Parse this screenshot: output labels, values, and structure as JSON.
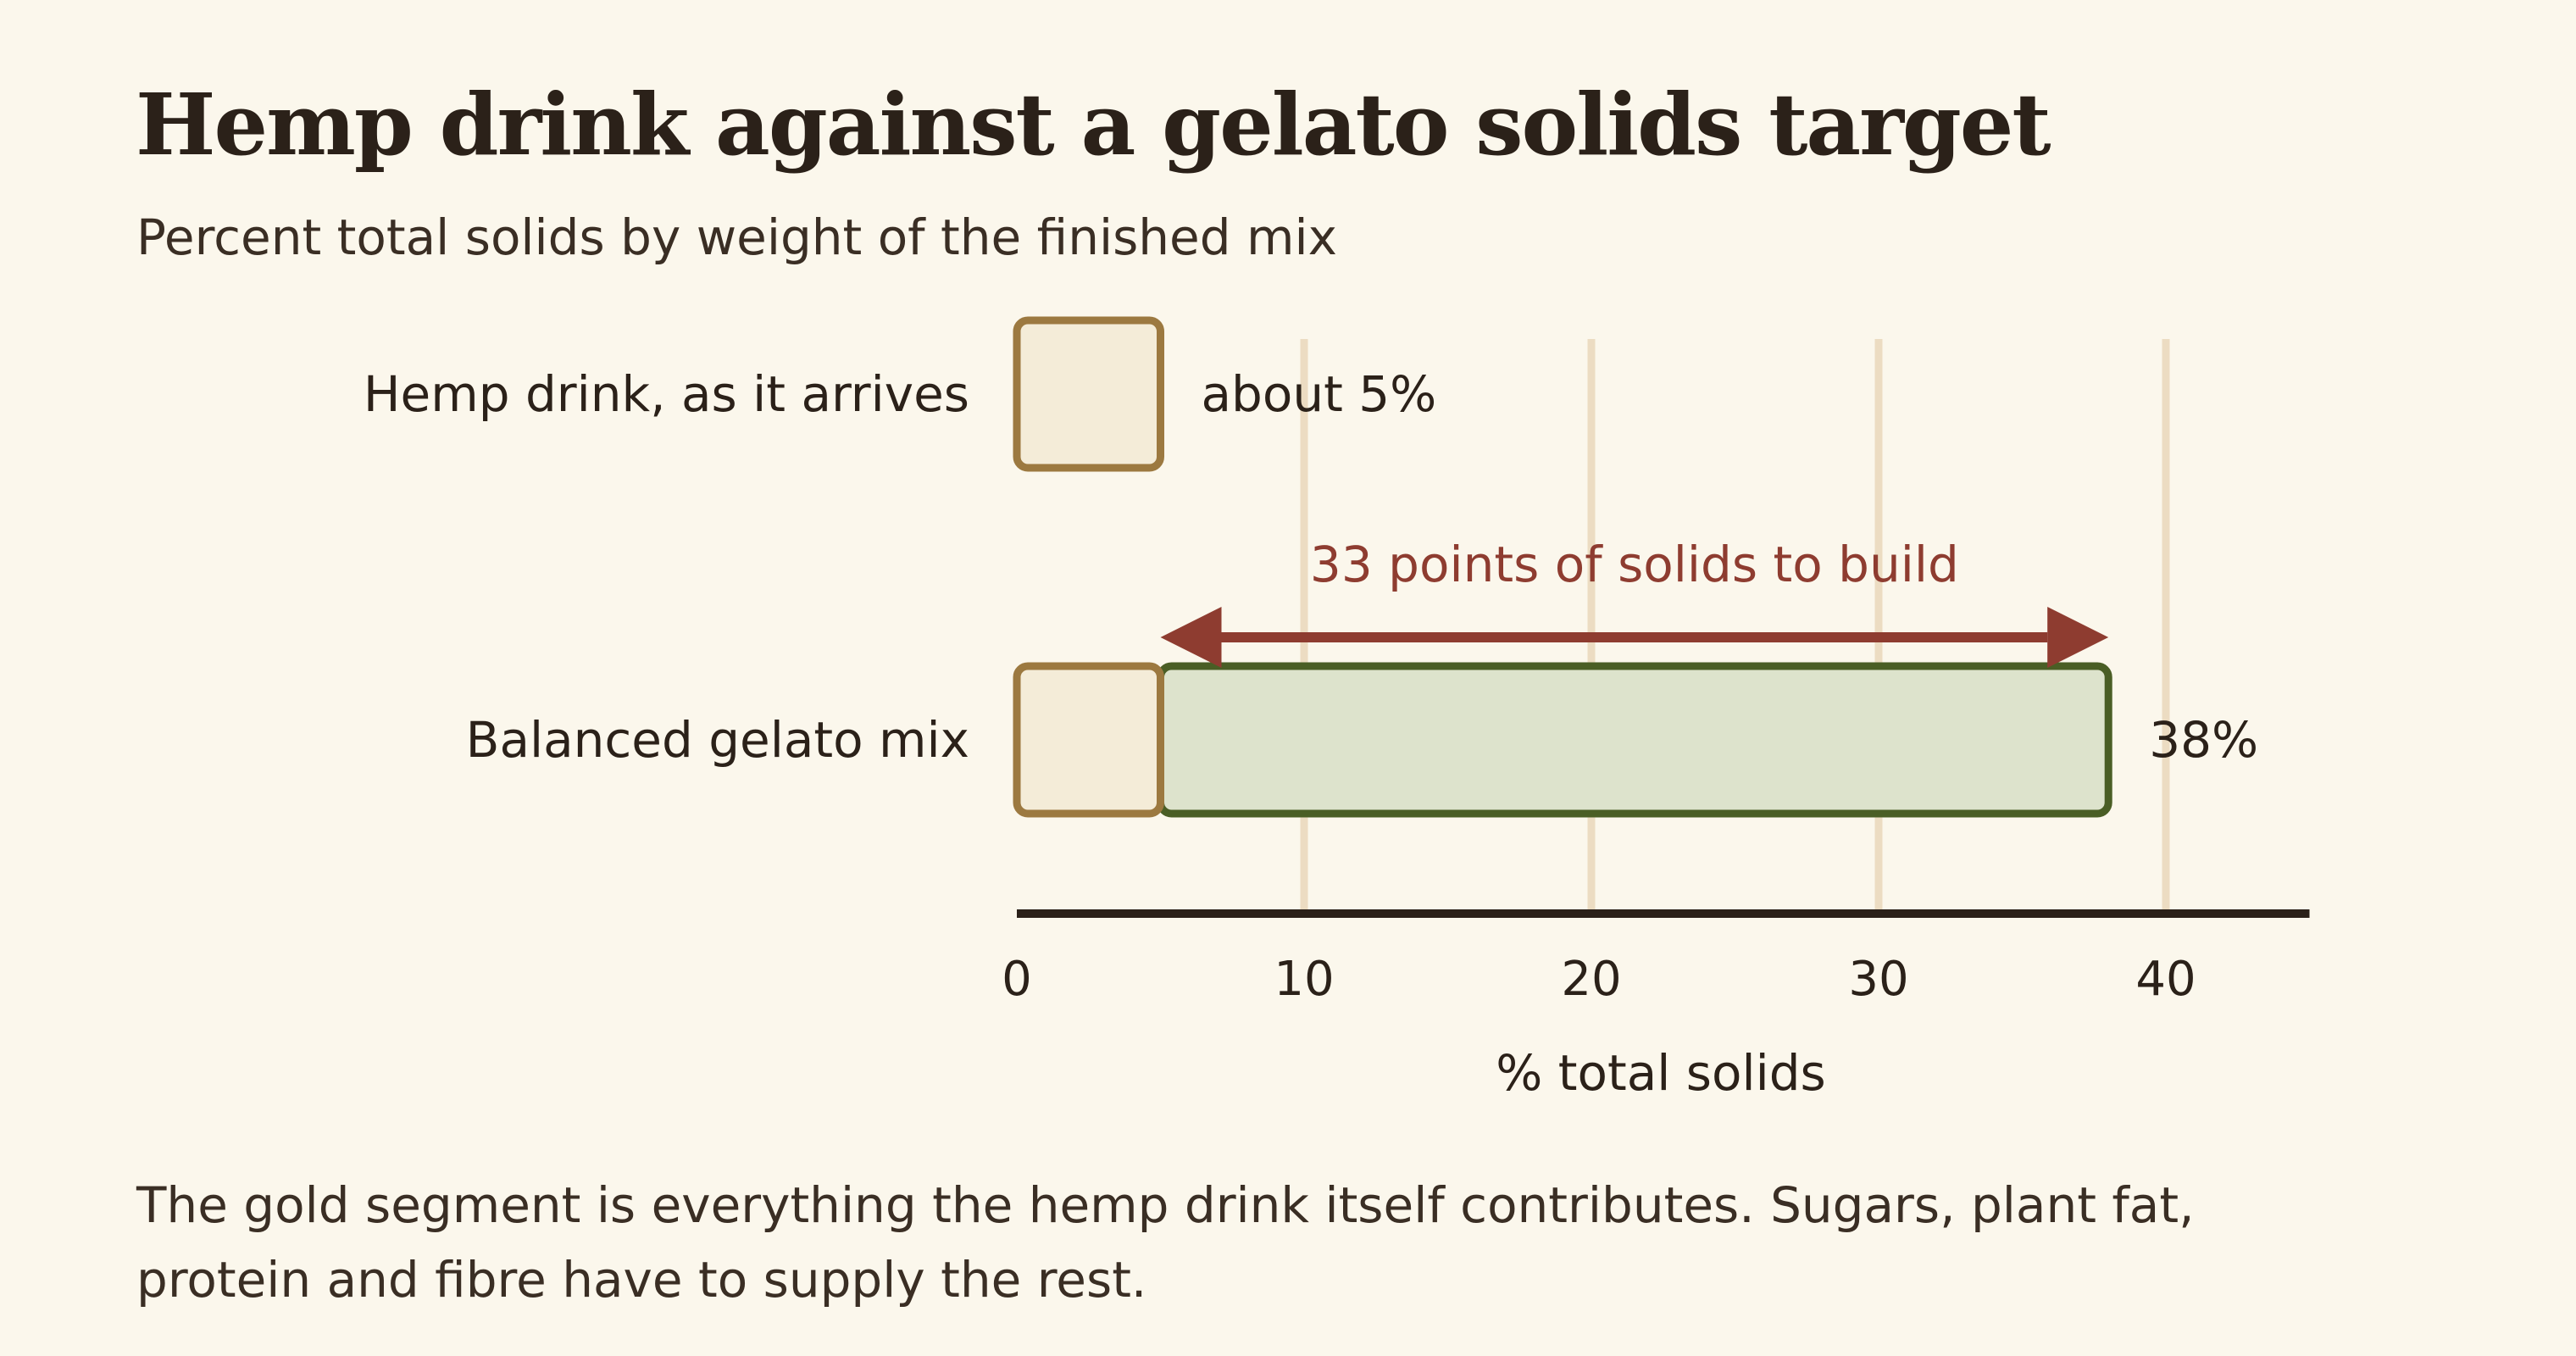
{
  "title": "Hemp drink against a gelato solids target",
  "subtitle": "Percent total solids by weight of the finished mix",
  "note": "The gold segment is everything the hemp drink itself contributes. Sugars, plant fat, protein and fibre have to supply the rest.",
  "chart_data": {
    "type": "bar",
    "orientation": "horizontal",
    "categories": [
      "Hemp drink, as it arrives",
      "Balanced gelato mix"
    ],
    "segments": [
      {
        "category": "Hemp drink, as it arrives",
        "from": 0,
        "to": 5,
        "role": "hemp"
      },
      {
        "category": "Balanced gelato mix",
        "from": 0,
        "to": 5,
        "role": "hemp"
      },
      {
        "category": "Balanced gelato mix",
        "from": 5,
        "to": 38,
        "role": "added"
      }
    ],
    "data_labels": [
      "about 5%",
      "38%"
    ],
    "annotation": {
      "text": "33 points of solids to build",
      "from": 5,
      "to": 38
    },
    "xlabel": "% total solids",
    "xticks": [
      0,
      10,
      20,
      30,
      40
    ],
    "xlim": [
      0,
      45
    ],
    "grid": true,
    "colors": {
      "hemp_fill": "#f4ecd8",
      "hemp_stroke": "#9c7940",
      "added_fill": "#dde3cc",
      "added_stroke": "#4a5e25",
      "annotation": "#8e3c30",
      "grid": "#ecdcc2",
      "axis": "#2b2119"
    }
  }
}
